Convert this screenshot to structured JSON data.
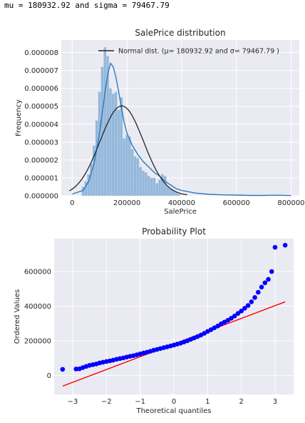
{
  "output_line": "mu = 180932.92 and sigma = 79467.79",
  "chart_data": [
    {
      "type": "bar",
      "title": "SalePrice distribution",
      "xlabel": "SalePrice",
      "ylabel": "Frequency",
      "xlim": [
        -40000,
        830000
      ],
      "ylim": [
        0,
        8.7e-06
      ],
      "x_ticks": [
        0,
        200000,
        400000,
        600000,
        800000
      ],
      "x_tick_labels": [
        "0",
        "200000",
        "400000",
        "600000",
        "800000"
      ],
      "y_ticks": [
        0,
        1e-06,
        2e-06,
        3e-06,
        4e-06,
        5e-06,
        6e-06,
        7e-06,
        8e-06
      ],
      "y_tick_labels": [
        "0.000000",
        "0.000001",
        "0.000002",
        "0.000003",
        "0.000004",
        "0.000005",
        "0.000006",
        "0.000007",
        "0.000008"
      ],
      "grid": true,
      "legend_position": "top-right",
      "legend_entries": [
        "Normal dist. (μ= 180932.92 and σ= 79467.79 )"
      ],
      "histogram": {
        "bin_edges": [
          35000,
          45000,
          55000,
          65000,
          75000,
          85000,
          95000,
          105000,
          115000,
          125000,
          135000,
          145000,
          155000,
          165000,
          175000,
          185000,
          195000,
          205000,
          215000,
          225000,
          235000,
          245000,
          255000,
          265000,
          275000,
          285000,
          295000,
          305000,
          315000,
          325000,
          335000,
          345000,
          355000,
          365000,
          375000,
          385000,
          395000
        ],
        "density": [
          5e-07,
          8e-07,
          1.2e-06,
          1.8e-06,
          2.8e-06,
          4.2e-06,
          5.8e-06,
          7.2e-06,
          8.3e-06,
          7.8e-06,
          6e-06,
          5.7e-06,
          5.8e-06,
          4.8e-06,
          5.5e-06,
          3.2e-06,
          3.4e-06,
          3.3e-06,
          2.6e-06,
          2.2e-06,
          2.1e-06,
          1.6e-06,
          1.4e-06,
          1.3e-06,
          1.1e-06,
          1e-06,
          1e-06,
          7e-07,
          9e-07,
          1.2e-06,
          1.1e-06,
          5e-07,
          4e-07,
          3e-07,
          2e-07,
          1e-07
        ]
      },
      "kde": {
        "x": [
          0,
          40000,
          60000,
          80000,
          100000,
          120000,
          130000,
          140000,
          150000,
          160000,
          170000,
          180000,
          190000,
          200000,
          220000,
          240000,
          260000,
          280000,
          300000,
          320000,
          340000,
          360000,
          380000,
          400000,
          450000,
          500000,
          550000,
          600000,
          650000,
          700000,
          750000,
          800000
        ],
        "y": [
          1e-07,
          3e-07,
          8e-07,
          1.8e-06,
          3.5e-06,
          5.8e-06,
          6.8e-06,
          7.4e-06,
          7.2e-06,
          6.6e-06,
          5.8e-06,
          4.9e-06,
          4.1e-06,
          3.5e-06,
          2.8e-06,
          2.3e-06,
          1.9e-06,
          1.6e-06,
          1.3e-06,
          1.1e-06,
          8e-07,
          6e-07,
          4e-07,
          3e-07,
          1.5e-07,
          8e-08,
          5e-08,
          4e-08,
          2e-08,
          2e-08,
          3e-08,
          1e-08
        ]
      },
      "normal_fit": {
        "mu": 180932.92,
        "sigma": 79467.79
      }
    },
    {
      "type": "scatter",
      "title": "Probability Plot",
      "xlabel": "Theoretical quantiles",
      "ylabel": "Ordered Values",
      "xlim": [
        -3.55,
        3.55
      ],
      "ylim": [
        -110000,
        790000
      ],
      "x_ticks": [
        -3,
        -2,
        -1,
        0,
        1,
        2,
        3
      ],
      "x_tick_labels": [
        "−3",
        "−2",
        "−1",
        "0",
        "1",
        "2",
        "3"
      ],
      "y_ticks": [
        0,
        200000,
        400000,
        600000
      ],
      "y_tick_labels": [
        "0",
        "200000",
        "400000",
        "600000"
      ],
      "grid": true,
      "points": {
        "x": [
          -3.3,
          -2.9,
          -2.8,
          -2.7,
          -2.6,
          -2.5,
          -2.4,
          -2.3,
          -2.2,
          -2.1,
          -2.0,
          -1.9,
          -1.8,
          -1.7,
          -1.6,
          -1.5,
          -1.4,
          -1.3,
          -1.2,
          -1.1,
          -1.0,
          -0.9,
          -0.8,
          -0.7,
          -0.6,
          -0.5,
          -0.4,
          -0.3,
          -0.2,
          -0.1,
          0.0,
          0.1,
          0.2,
          0.3,
          0.4,
          0.5,
          0.6,
          0.7,
          0.8,
          0.9,
          1.0,
          1.1,
          1.2,
          1.3,
          1.4,
          1.5,
          1.6,
          1.7,
          1.8,
          1.9,
          2.0,
          2.1,
          2.2,
          2.3,
          2.4,
          2.5,
          2.6,
          2.7,
          2.8,
          2.9,
          3.0,
          3.3
        ],
        "y": [
          35000,
          37000,
          38000,
          45000,
          52000,
          58000,
          62000,
          66000,
          72000,
          76000,
          80000,
          84000,
          88000,
          93000,
          97000,
          101000,
          106000,
          110000,
          114000,
          119000,
          124000,
          129000,
          134000,
          139000,
          145000,
          150000,
          155000,
          160000,
          165000,
          170000,
          175000,
          181000,
          186000,
          193000,
          200000,
          208000,
          216000,
          224000,
          233000,
          243000,
          254000,
          264000,
          275000,
          285000,
          298000,
          308000,
          318000,
          330000,
          343000,
          358000,
          372000,
          388000,
          404000,
          425000,
          450000,
          480000,
          510000,
          535000,
          555000,
          600000,
          740000,
          752000
        ]
      },
      "fit_line": {
        "x": [
          -3.3,
          3.3
        ],
        "y": [
          -62000,
          425000
        ]
      },
      "colors": {
        "points": "#0000ff",
        "line": "#ff0000"
      }
    }
  ],
  "colors": {
    "panel_bg": "#eaeaf2",
    "grid": "#ffffff",
    "hist": "#8fb5d9",
    "kde": "#2b7bba",
    "normal": "#262626"
  }
}
